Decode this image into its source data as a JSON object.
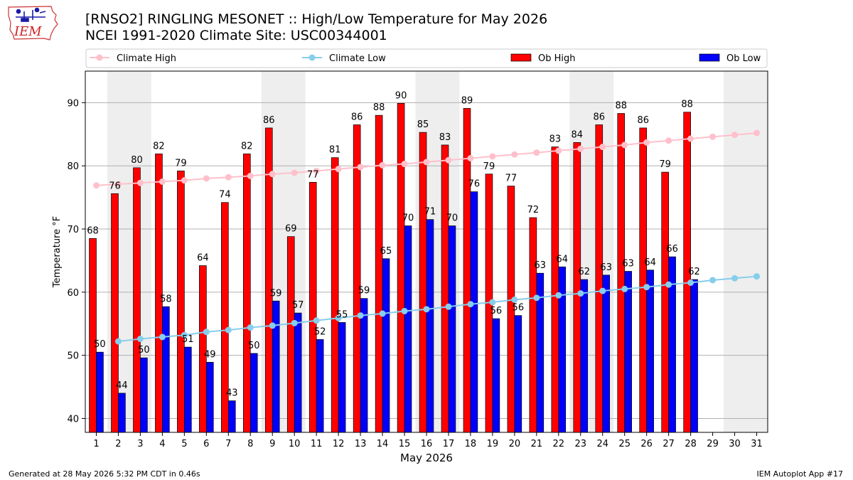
{
  "header": {
    "logo_text": "IEM",
    "title": "[RNSO2] RINGLING MESONET :: High/Low Temperature for May 2026",
    "subtitle": "NCEI 1991-2020 Climate Site: USC00344001"
  },
  "footer": {
    "generated": "Generated at 28 May 2026 5:32 PM CDT in 0.46s",
    "app": "IEM Autoplot App #17"
  },
  "colors": {
    "ob_high": "#ff0000",
    "ob_low": "#0000ff",
    "climate_high": "#ffc0cb",
    "climate_low": "#87ceeb",
    "weekend_band": "#eeeeee",
    "grid": "#b0b0b0"
  },
  "chart_data": {
    "type": "bar",
    "xlabel": "May 2026",
    "ylabel": "Temperature °F",
    "xlim": [
      0.5,
      31.5
    ],
    "ylim": [
      37.8,
      95
    ],
    "yticks": [
      40,
      50,
      60,
      70,
      80,
      90
    ],
    "grid": "y",
    "legend_position": "top",
    "legend": [
      "Climate High",
      "Climate Low",
      "Ob High",
      "Ob Low"
    ],
    "days": [
      1,
      2,
      3,
      4,
      5,
      6,
      7,
      8,
      9,
      10,
      11,
      12,
      13,
      14,
      15,
      16,
      17,
      18,
      19,
      20,
      21,
      22,
      23,
      24,
      25,
      26,
      27,
      28,
      29,
      30,
      31
    ],
    "weekend_bands": [
      [
        2,
        3
      ],
      [
        9,
        10
      ],
      [
        16,
        17
      ],
      [
        23,
        24
      ],
      [
        30,
        31
      ]
    ],
    "ob_high": {
      "name": "Ob High",
      "x": [
        1,
        2,
        3,
        4,
        5,
        6,
        7,
        8,
        9,
        10,
        11,
        12,
        13,
        14,
        15,
        16,
        17,
        18,
        19,
        20,
        21,
        22,
        23,
        24,
        25,
        26,
        27,
        28
      ],
      "values": [
        68.5,
        75.6,
        79.7,
        81.9,
        79.2,
        64.2,
        74.2,
        81.9,
        86.0,
        68.8,
        77.4,
        81.3,
        86.5,
        88.0,
        89.9,
        85.3,
        83.3,
        89.1,
        78.7,
        76.8,
        71.8,
        83.0,
        83.7,
        86.5,
        88.3,
        86.0,
        79.0,
        88.5
      ],
      "labels": [
        "68",
        "76",
        "80",
        "82",
        "79",
        "64",
        "74",
        "82",
        "86",
        "69",
        "77",
        "81",
        "86",
        "88",
        "90",
        "85",
        "83",
        "89",
        "79",
        "77",
        "72",
        "83",
        "84",
        "86",
        "88",
        "86",
        "79",
        "88"
      ]
    },
    "ob_low": {
      "name": "Ob Low",
      "x": [
        1,
        2,
        3,
        4,
        5,
        6,
        7,
        8,
        9,
        10,
        11,
        12,
        13,
        14,
        15,
        16,
        17,
        18,
        19,
        20,
        21,
        22,
        23,
        24,
        25,
        26,
        27,
        28
      ],
      "values": [
        50.5,
        44.0,
        49.6,
        57.7,
        51.3,
        48.9,
        42.8,
        50.3,
        58.6,
        56.7,
        52.5,
        55.2,
        59.0,
        65.3,
        70.5,
        71.5,
        70.5,
        75.9,
        55.8,
        56.3,
        63.0,
        64.0,
        62.0,
        62.7,
        63.3,
        63.5,
        65.6,
        62.0
      ],
      "labels": [
        "50",
        "44",
        "50",
        "58",
        "51",
        "49",
        "43",
        "50",
        "59",
        "57",
        "52",
        "55",
        "59",
        "65",
        "70",
        "71",
        "70",
        "76",
        "56",
        "56",
        "63",
        "64",
        "62",
        "63",
        "63",
        "64",
        "66",
        "62"
      ]
    },
    "climate_high": {
      "name": "Climate High",
      "x": [
        1,
        2,
        3,
        4,
        5,
        6,
        7,
        8,
        9,
        10,
        11,
        12,
        13,
        14,
        15,
        16,
        17,
        18,
        19,
        20,
        21,
        22,
        23,
        24,
        25,
        26,
        27,
        28,
        29,
        30,
        31
      ],
      "values": [
        76.9,
        77.1,
        77.3,
        77.5,
        77.7,
        78.0,
        78.2,
        78.4,
        78.7,
        78.9,
        79.2,
        79.5,
        79.8,
        80.1,
        80.3,
        80.6,
        80.9,
        81.2,
        81.5,
        81.8,
        82.1,
        82.4,
        82.7,
        83.0,
        83.3,
        83.7,
        84.0,
        84.3,
        84.6,
        84.9,
        85.2
      ]
    },
    "climate_low": {
      "name": "Climate Low",
      "x": [
        2,
        3,
        4,
        5,
        6,
        7,
        8,
        9,
        10,
        11,
        12,
        13,
        14,
        15,
        16,
        17,
        18,
        19,
        20,
        21,
        22,
        23,
        24,
        25,
        26,
        27,
        28,
        29,
        30,
        31
      ],
      "values": [
        52.2,
        52.6,
        52.9,
        53.2,
        53.7,
        54.0,
        54.4,
        54.7,
        55.1,
        55.5,
        55.9,
        56.3,
        56.6,
        57.0,
        57.3,
        57.7,
        58.1,
        58.4,
        58.8,
        59.1,
        59.5,
        59.8,
        60.2,
        60.5,
        60.8,
        61.2,
        61.5,
        61.9,
        62.2,
        62.5
      ]
    }
  }
}
